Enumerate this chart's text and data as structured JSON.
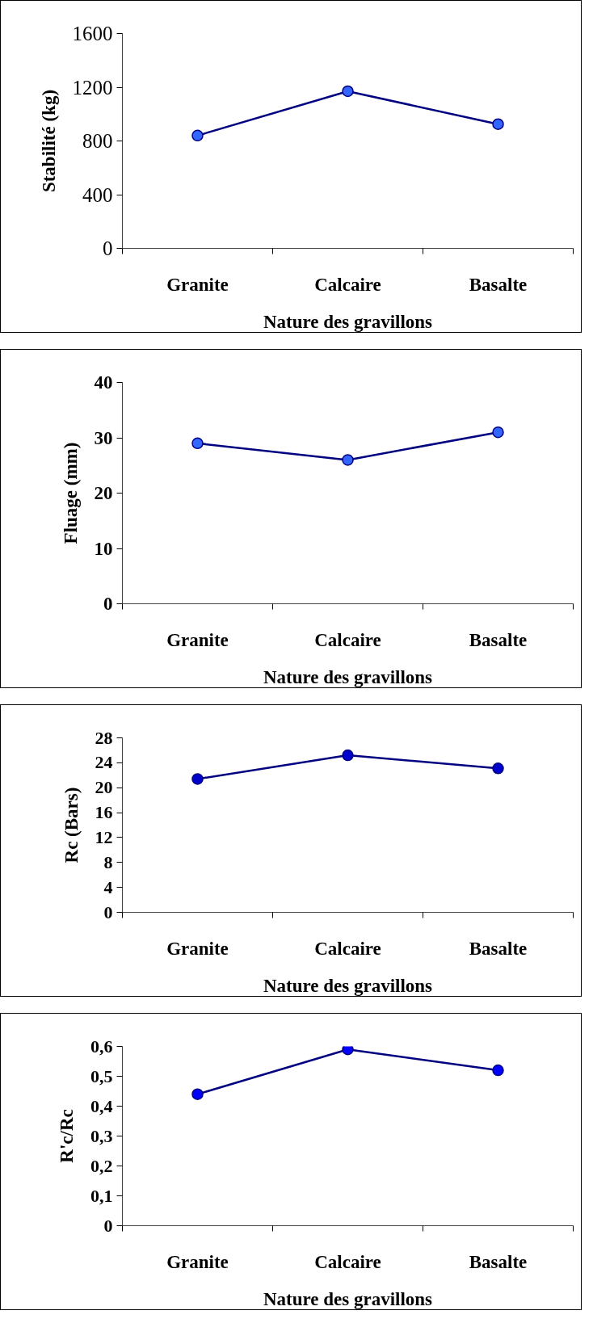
{
  "chart_data": [
    {
      "type": "line",
      "categories": [
        "Granite",
        "Calcaire",
        "Basalte"
      ],
      "xlabel": "Nature des gravillons",
      "ylabel": "Stabilité (kg)",
      "ylim": [
        0,
        1600
      ],
      "yticks": [
        0,
        400,
        800,
        1200,
        1600
      ],
      "grid": false,
      "marker": "circle",
      "line_style": "solid",
      "series": [
        {
          "color": "#000080",
          "colors": [
            "#3366ff",
            "#3366ff",
            "#3366ff"
          ],
          "values": [
            840,
            1170,
            925
          ]
        }
      ]
    },
    {
      "type": "line",
      "categories": [
        "Granite",
        "Calcaire",
        "Basalte"
      ],
      "xlabel": "Nature des gravillons",
      "ylabel": "Fluage (mm)",
      "ylim": [
        0,
        40
      ],
      "yticks": [
        0,
        10,
        20,
        30,
        40
      ],
      "grid": false,
      "marker": "circle",
      "line_style": "solid",
      "series": [
        {
          "color": "#000080",
          "colors": [
            "#3366ff",
            "#3366ff",
            "#3366ff"
          ],
          "values": [
            29,
            26,
            31
          ]
        }
      ]
    },
    {
      "type": "line",
      "categories": [
        "Granite",
        "Calcaire",
        "Basalte"
      ],
      "xlabel": "Nature des gravillons",
      "ylabel": "Rc (Bars)",
      "ylim": [
        0,
        28
      ],
      "yticks": [
        0,
        4,
        8,
        12,
        16,
        20,
        24,
        28
      ],
      "grid": false,
      "marker": "circle",
      "line_style": "solid",
      "series": [
        {
          "color": "#000080",
          "colors": [
            "#0000cc",
            "#0000cc",
            "#0000cc"
          ],
          "values": [
            21.4,
            25.2,
            23.1
          ]
        }
      ]
    },
    {
      "type": "line",
      "categories": [
        "Granite",
        "Calcaire",
        "Basalte"
      ],
      "xlabel": "Nature des gravillons",
      "ylabel": "R'c/Rc",
      "ylim": [
        0,
        0.6
      ],
      "yticks": [
        0,
        {
          "value": 0.1,
          "label": "0,1"
        },
        {
          "value": 0.2,
          "label": "0,2"
        },
        {
          "value": 0.3,
          "label": "0,3"
        },
        {
          "value": 0.4,
          "label": "0,4"
        },
        {
          "value": 0.5,
          "label": "0,5"
        },
        {
          "value": 0.6,
          "label": "0,6"
        }
      ],
      "grid": false,
      "marker": "circle",
      "line_style": "solid",
      "series": [
        {
          "color": "#000080",
          "colors": [
            "#0000ff",
            "#0000ff",
            "#0000ff"
          ],
          "values": [
            0.44,
            0.59,
            0.52
          ]
        }
      ]
    }
  ]
}
